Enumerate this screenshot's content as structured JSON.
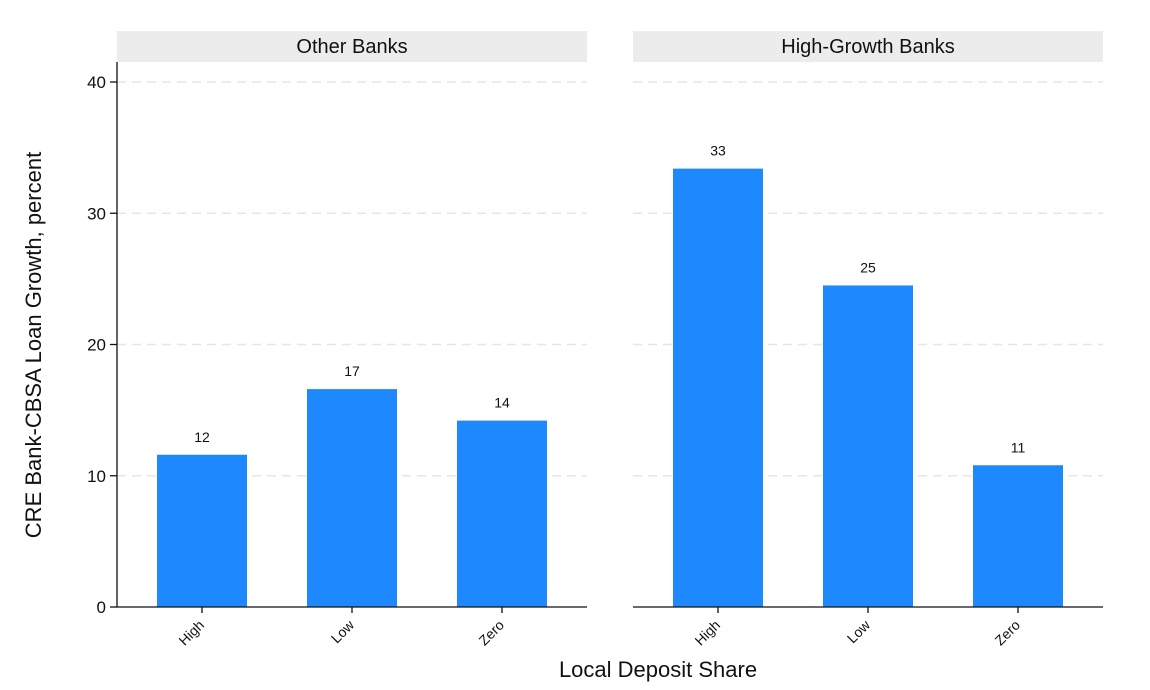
{
  "chart_data": {
    "type": "bar",
    "xlabel": "Local Deposit Share",
    "ylabel": "CRE Bank-CBSA Loan Growth, percent",
    "ylim": [
      0,
      40
    ],
    "yticks": [
      0,
      10,
      20,
      30,
      40
    ],
    "grid": true,
    "colors": {
      "bar": "#1e88ff",
      "strip": "#ececec"
    },
    "categories": [
      "High",
      "Low",
      "Zero"
    ],
    "panels": [
      {
        "title": "Other Banks",
        "values": [
          11.6,
          16.6,
          14.2
        ],
        "labels": [
          "12",
          "17",
          "14"
        ]
      },
      {
        "title": "High-Growth Banks",
        "values": [
          33.4,
          24.5,
          10.8
        ],
        "labels": [
          "33",
          "25",
          "11"
        ]
      }
    ]
  }
}
